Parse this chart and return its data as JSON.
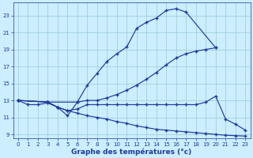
{
  "background_color": "#cceeff",
  "grid_color": "#99cccc",
  "line_color": "#1f3a9e",
  "xlabel": "Graphe des températures (°c)",
  "xlim": [
    -0.5,
    23.5
  ],
  "ylim": [
    8.5,
    24.5
  ],
  "xticks": [
    0,
    1,
    2,
    3,
    4,
    5,
    6,
    7,
    8,
    9,
    10,
    11,
    12,
    13,
    14,
    15,
    16,
    17,
    18,
    19,
    20,
    21,
    22,
    23
  ],
  "yticks": [
    9,
    11,
    13,
    15,
    17,
    19,
    21,
    23
  ],
  "line1_x": [
    0,
    1,
    2,
    3,
    4,
    5,
    6,
    7,
    8,
    9,
    10,
    11,
    12,
    13,
    14,
    15,
    16,
    17,
    20
  ],
  "line1_y": [
    13.0,
    12.5,
    12.5,
    12.7,
    12.2,
    11.2,
    12.8,
    14.8,
    16.2,
    17.6,
    18.5,
    19.3,
    21.5,
    22.2,
    22.7,
    23.6,
    23.8,
    23.4,
    19.2
  ],
  "line2_x": [
    0,
    3,
    6,
    7,
    8,
    9,
    10,
    11,
    12,
    13,
    14,
    15,
    16,
    17,
    18,
    19,
    20
  ],
  "line2_y": [
    13.0,
    12.8,
    12.8,
    13.0,
    13.0,
    13.3,
    13.7,
    14.2,
    14.8,
    15.5,
    16.3,
    17.2,
    18.0,
    18.5,
    18.8,
    19.0,
    19.2
  ],
  "line3_x": [
    0,
    3,
    4,
    5,
    6,
    7,
    8,
    9,
    10,
    11,
    12,
    13,
    14,
    15,
    16,
    17,
    18,
    19,
    20,
    21,
    22,
    23
  ],
  "line3_y": [
    13.0,
    12.8,
    12.2,
    11.8,
    12.0,
    12.5,
    12.5,
    12.5,
    12.5,
    12.5,
    12.5,
    12.5,
    12.5,
    12.5,
    12.5,
    12.5,
    12.5,
    12.8,
    13.5,
    10.8,
    10.2,
    9.5
  ],
  "line4_x": [
    0,
    3,
    4,
    5,
    6,
    7,
    8,
    9,
    10,
    11,
    12,
    13,
    14,
    15,
    16,
    17,
    18,
    19,
    20,
    21,
    22,
    23
  ],
  "line4_y": [
    13.0,
    12.8,
    12.2,
    11.8,
    11.5,
    11.2,
    11.0,
    10.8,
    10.5,
    10.3,
    10.0,
    9.8,
    9.6,
    9.5,
    9.4,
    9.3,
    9.2,
    9.1,
    9.0,
    8.9,
    8.85,
    8.8
  ]
}
